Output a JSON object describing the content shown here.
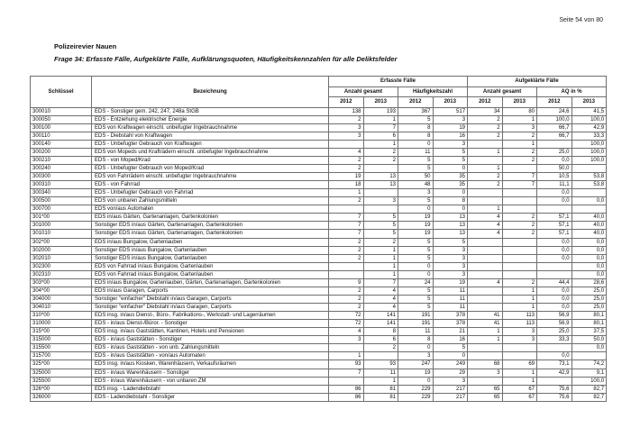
{
  "page": {
    "page_number": "Seite 54 von 80",
    "title": "Polizeirevier Nauen",
    "subtitle": "Frage 34: Erfasste Fälle, Aufgeklärte Fälle, Aufklärungsquoten, Häufigkeitskennzahlen für alle Deliktsfelder"
  },
  "table": {
    "headers": {
      "schluessel": "Schlüssel",
      "bezeichnung": "Bezeichnung",
      "group_erfasste": "Erfasste Fälle",
      "group_aufgeklaerte": "Aufgeklärte Fälle",
      "sub_anzahl_1": "Anzahl gesamt",
      "sub_haeufigkeit": "Häufigkeitszahl",
      "sub_anzahl_2": "Anzahl gesamt",
      "sub_aq": "AQ in %",
      "years": [
        "2012",
        "2013"
      ]
    },
    "rows": [
      {
        "key": "300010",
        "name": "EDS - Sonstiger gem. 242, 247, 248a StGB",
        "values": [
          "138",
          "193",
          "367",
          "517",
          "34",
          "80",
          "24,6",
          "41,5"
        ]
      },
      {
        "key": "300050",
        "name": "EDS - Entziehung elektrischer Energie",
        "values": [
          "2",
          "1",
          "5",
          "3",
          "2",
          "1",
          "100,0",
          "100,0"
        ]
      },
      {
        "key": "300100",
        "name": "EDS von Kraftwagen einschl. unbefugter Ingebrauchnahme",
        "values": [
          "3",
          "7",
          "8",
          "19",
          "2",
          "3",
          "66,7",
          "42,9"
        ]
      },
      {
        "key": "300110",
        "name": "EDS - Diebstahl von Kraftwagen",
        "values": [
          "3",
          "6",
          "8",
          "16",
          "2",
          "2",
          "66,7",
          "33,3"
        ]
      },
      {
        "key": "300140",
        "name": "EDS - Unbefugter Gebrauch von Kraftwagen",
        "values": [
          "",
          "1",
          "0",
          "3",
          "",
          "1",
          "",
          "100,0"
        ]
      },
      {
        "key": "300200",
        "name": "EDS von Mopeds und Krafträdern einschl. unbefugter Ingebrauchnahme",
        "values": [
          "4",
          "2",
          "11",
          "5",
          "1",
          "2",
          "25,0",
          "100,0"
        ]
      },
      {
        "key": "300210",
        "name": "EDS - von Moped/Krad",
        "values": [
          "2",
          "2",
          "5",
          "5",
          "",
          "2",
          "0,0",
          "100,0"
        ]
      },
      {
        "key": "300240",
        "name": "EDS - Unbefugter Gebrauch von Moped/Krad",
        "values": [
          "2",
          "",
          "5",
          "0",
          "1",
          "",
          "50,0",
          ""
        ]
      },
      {
        "key": "300300",
        "name": "EDS von Fahrrädern einschl. unbefugter Ingebrauchnahme",
        "values": [
          "19",
          "13",
          "50",
          "35",
          "2",
          "7",
          "10,5",
          "53,8"
        ]
      },
      {
        "key": "300310",
        "name": "EDS - von Fahrrad",
        "values": [
          "18",
          "13",
          "48",
          "35",
          "2",
          "7",
          "11,1",
          "53,8"
        ]
      },
      {
        "key": "300340",
        "name": "EDS - Unbefugter Gebrauch von Fahrrad",
        "values": [
          "1",
          "",
          "3",
          "0",
          "",
          "",
          "0,0",
          ""
        ]
      },
      {
        "key": "300500",
        "name": "EDS von unbaren Zahlungsmitteln",
        "values": [
          "2",
          "3",
          "5",
          "8",
          "",
          "",
          "0,0",
          "0,0"
        ]
      },
      {
        "key": "300700",
        "name": "EDS von/aus Automaten",
        "values": [
          "",
          "",
          "0",
          "0",
          "1",
          "",
          "",
          ""
        ]
      },
      {
        "key": "301*00",
        "name": "EDS in/aus Gärten, Gartenanlagen, Gartenkolonien",
        "values": [
          "7",
          "5",
          "19",
          "13",
          "4",
          "2",
          "57,1",
          "40,0"
        ]
      },
      {
        "key": "301000",
        "name": "Sonstiger EDS in/aus Gärten, Gartenanlagen, Gartenkolonien",
        "values": [
          "7",
          "5",
          "19",
          "13",
          "4",
          "2",
          "57,1",
          "40,0"
        ]
      },
      {
        "key": "301010",
        "name": "Sonstiger EDS in/aus Gärten, Gartenanlagen, Gartenkolonien",
        "values": [
          "7",
          "5",
          "19",
          "13",
          "4",
          "2",
          "57,1",
          "40,0"
        ]
      },
      {
        "key": "302*00",
        "name": "EDS in/aus Bungalow, Gartenlauben",
        "values": [
          "2",
          "2",
          "5",
          "5",
          "",
          "",
          "0,0",
          "0,0"
        ]
      },
      {
        "key": "302000",
        "name": "Sonstiger EDS in/aus Bungalow, Gartenlauben",
        "values": [
          "2",
          "1",
          "5",
          "3",
          "",
          "",
          "0,0",
          "0,0"
        ]
      },
      {
        "key": "302010",
        "name": "Sonstiger EDS in/aus Bungalow, Gartenlauben",
        "values": [
          "2",
          "1",
          "5",
          "3",
          "",
          "",
          "0,0",
          "0,0"
        ]
      },
      {
        "key": "302300",
        "name": "EDS von Fahrrad in/aus Bungalow, Gartenlauben",
        "values": [
          "",
          "1",
          "0",
          "3",
          "",
          "",
          "",
          "0,0"
        ]
      },
      {
        "key": "302310",
        "name": "EDS von Fahrrad in/aus Bungalow, Gartenlauben",
        "values": [
          "",
          "1",
          "0",
          "3",
          "",
          "",
          "",
          "0,0"
        ]
      },
      {
        "key": "303*00",
        "name": "EDS in/aus Bungalow, Gartenlauben, Gärten, Gartenanlagen, Gartenkolonien",
        "values": [
          "9",
          "7",
          "24",
          "19",
          "4",
          "2",
          "44,4",
          "28,6"
        ]
      },
      {
        "key": "304*00",
        "name": "EDS in/aus Garagen, Carports",
        "values": [
          "2",
          "4",
          "5",
          "11",
          "",
          "1",
          "0,0",
          "25,0"
        ]
      },
      {
        "key": "304000",
        "name": "Sonstiger \"einfacher\" Diebstahl in/aus Garagen, Carports",
        "values": [
          "2",
          "4",
          "5",
          "11",
          "",
          "1",
          "0,0",
          "25,0"
        ]
      },
      {
        "key": "304010",
        "name": "Sonstiger \"einfacher\" Diebstahl in/aus Garagen, Carports",
        "values": [
          "2",
          "4",
          "5",
          "11",
          "",
          "1",
          "0,0",
          "25,0"
        ]
      },
      {
        "key": "310*00",
        "name": "EDS insg. in/aus Dienst-, Büro-, Fabrikations-, Werkstatt- und Lagerräumen",
        "values": [
          "72",
          "141",
          "191",
          "378",
          "41",
          "113",
          "56,9",
          "80,1"
        ]
      },
      {
        "key": "310000",
        "name": "EDS - in/aus Dienst-/Büror. - Sonstiger",
        "values": [
          "72",
          "141",
          "191",
          "378",
          "41",
          "113",
          "56,9",
          "80,1"
        ]
      },
      {
        "key": "315*00",
        "name": "EDS insg. in/aus Gaststätten, Kantinen, Hotels und Pensionen",
        "values": [
          "4",
          "8",
          "11",
          "21",
          "1",
          "3",
          "25,0",
          "37,5"
        ]
      },
      {
        "key": "315000",
        "name": "EDS - in/aus Gaststätten - Sonstiger",
        "values": [
          "3",
          "6",
          "8",
          "16",
          "1",
          "3",
          "33,3",
          "50,0"
        ]
      },
      {
        "key": "315500",
        "name": "EDS - in/aus Gaststätten - von unb. Zahlungsmitteln",
        "values": [
          "",
          "2",
          "0",
          "5",
          "",
          "",
          "",
          "0,0"
        ]
      },
      {
        "key": "315700",
        "name": "EDS - in/aus Gaststätten - von/aus Automaten",
        "values": [
          "1",
          "",
          "3",
          "0",
          "",
          "",
          "0,0",
          ""
        ]
      },
      {
        "key": "325*00",
        "name": "EDS insg. in/aus Kiosken, Warenhäusern, Verkaufsräumen",
        "values": [
          "93",
          "93",
          "247",
          "249",
          "68",
          "69",
          "73,1",
          "74,2"
        ]
      },
      {
        "key": "325000",
        "name": "EDS - in/aus Warenhäusern - Sonstiger",
        "values": [
          "7",
          "11",
          "19",
          "29",
          "3",
          "1",
          "42,9",
          "9,1"
        ]
      },
      {
        "key": "325500",
        "name": "EDS - in/aus Warenhäusern - von unbaren ZM",
        "values": [
          "",
          "1",
          "0",
          "3",
          "",
          "1",
          "",
          "100,0"
        ]
      },
      {
        "key": "326*00",
        "name": "EDS insg. - Ladendiebstahl",
        "values": [
          "86",
          "81",
          "229",
          "217",
          "65",
          "67",
          "75,6",
          "82,7"
        ]
      },
      {
        "key": "326000",
        "name": "EDS - Ladendiebstahl - Sonstiger",
        "values": [
          "86",
          "81",
          "229",
          "217",
          "65",
          "67",
          "75,6",
          "82,7"
        ]
      }
    ]
  }
}
